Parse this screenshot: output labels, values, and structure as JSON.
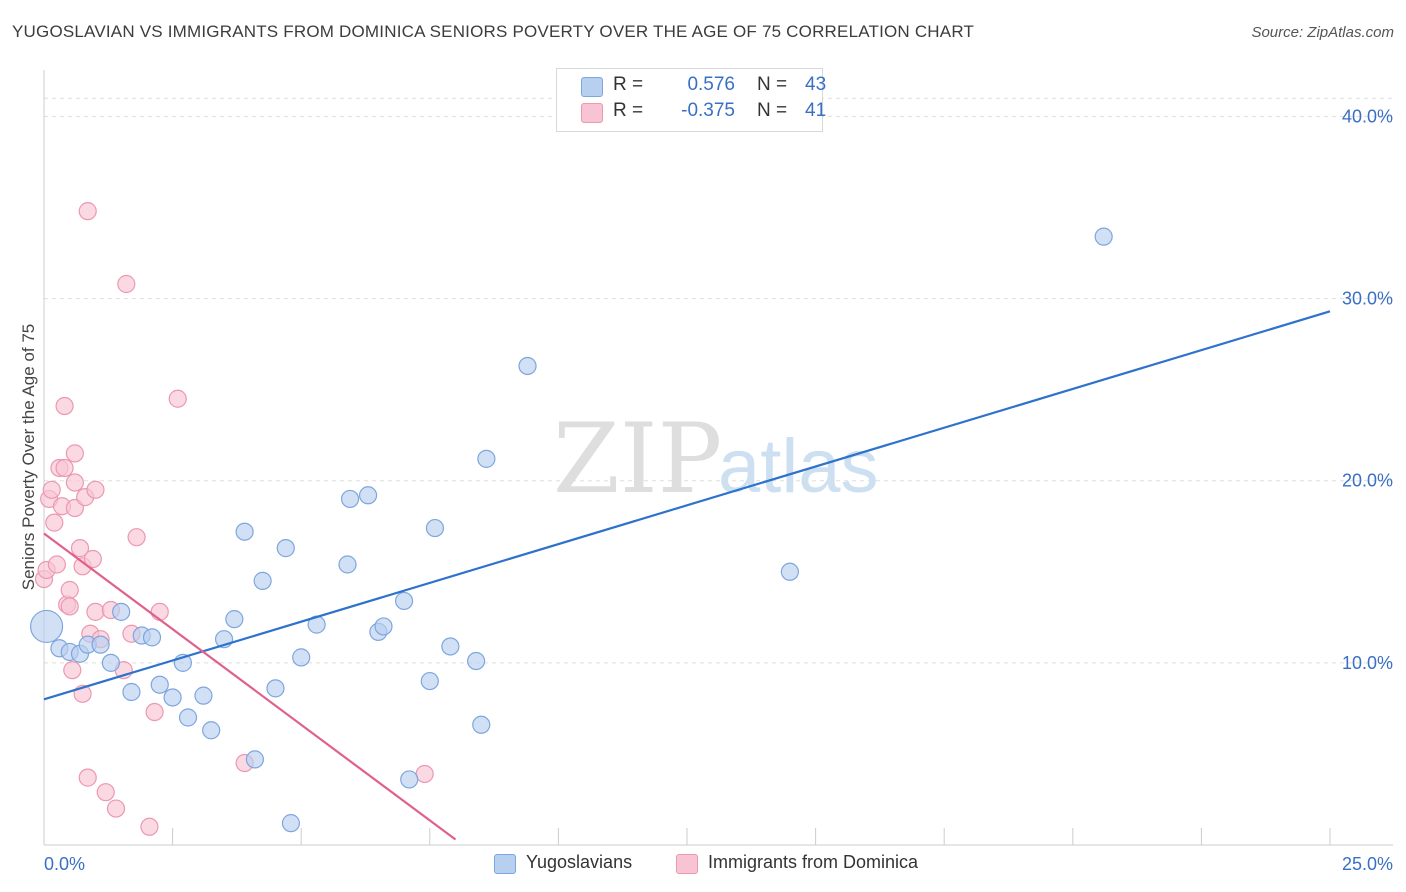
{
  "title": "YUGOSLAVIAN VS IMMIGRANTS FROM DOMINICA SENIORS POVERTY OVER THE AGE OF 75 CORRELATION CHART",
  "source": "Source: ZipAtlas.com",
  "watermark": {
    "bold": "ZIP",
    "light": "atlas"
  },
  "legend": {
    "rows": [
      {
        "r_label": "R =",
        "r_value": "0.576",
        "n_label": "N =",
        "n_value": "43"
      },
      {
        "r_label": "R =",
        "r_value": "-0.375",
        "n_label": "N =",
        "n_value": "41"
      }
    ]
  },
  "bottom_legend": {
    "series1": "Yugoslavians",
    "series2": "Immigrants from Dominica"
  },
  "colors": {
    "series1_fill": "#b8d0f0",
    "series1_stroke": "#7ea6de",
    "series1_line": "#2e72cc",
    "series2_fill": "#f8c4d4",
    "series2_stroke": "#ec98b2",
    "series2_line": "#e0608c",
    "tick_label": "#3a6fc4",
    "grid": "#dddddd"
  },
  "chart_data": {
    "type": "scatter",
    "title": "YUGOSLAVIAN VS IMMIGRANTS FROM DOMINICA SENIORS POVERTY OVER THE AGE OF 75 CORRELATION CHART",
    "xlabel": "",
    "ylabel": "Seniors Poverty Over the Age of 75",
    "xlim": [
      0,
      25
    ],
    "ylim": [
      0,
      42
    ],
    "x_tick_labels": [
      {
        "value": 0,
        "label": "0.0%"
      },
      {
        "value": 25,
        "label": "25.0%"
      }
    ],
    "y_tick_labels": [
      {
        "value": 10,
        "label": "10.0%"
      },
      {
        "value": 20,
        "label": "20.0%"
      },
      {
        "value": 30,
        "label": "30.0%"
      },
      {
        "value": 40,
        "label": "40.0%"
      }
    ],
    "x_minor_ticks": [
      2.5,
      5,
      7.5,
      10,
      12.5,
      15,
      17.5,
      20,
      22.5,
      25
    ],
    "series": [
      {
        "name": "Yugoslavians",
        "r": 0.576,
        "n": 43,
        "trend": {
          "x": [
            0,
            25
          ],
          "y": [
            8.0,
            29.3
          ]
        },
        "points": [
          [
            0.05,
            12.0,
            "big"
          ],
          [
            0.3,
            10.8
          ],
          [
            0.5,
            10.6
          ],
          [
            0.7,
            10.5
          ],
          [
            0.85,
            11.0
          ],
          [
            1.1,
            11.0
          ],
          [
            1.3,
            10.0
          ],
          [
            1.5,
            12.8
          ],
          [
            1.7,
            8.4
          ],
          [
            1.9,
            11.5
          ],
          [
            2.1,
            11.4
          ],
          [
            2.25,
            8.8
          ],
          [
            2.5,
            8.1
          ],
          [
            2.7,
            10.0
          ],
          [
            2.8,
            7.0
          ],
          [
            3.1,
            8.2
          ],
          [
            3.25,
            6.3
          ],
          [
            3.5,
            11.3
          ],
          [
            3.7,
            12.4
          ],
          [
            3.9,
            17.2
          ],
          [
            4.1,
            4.7
          ],
          [
            4.25,
            14.5
          ],
          [
            4.5,
            8.6
          ],
          [
            4.7,
            16.3
          ],
          [
            4.8,
            1.2
          ],
          [
            5.0,
            10.3
          ],
          [
            5.3,
            12.1
          ],
          [
            5.9,
            15.4
          ],
          [
            5.95,
            19.0
          ],
          [
            6.3,
            19.2
          ],
          [
            6.5,
            11.7
          ],
          [
            6.6,
            12.0
          ],
          [
            7.0,
            13.4
          ],
          [
            7.1,
            3.6
          ],
          [
            7.5,
            9.0
          ],
          [
            7.6,
            17.4
          ],
          [
            7.9,
            10.9
          ],
          [
            8.4,
            10.1
          ],
          [
            8.5,
            6.6
          ],
          [
            8.6,
            21.2
          ],
          [
            9.4,
            26.3
          ],
          [
            14.5,
            15.0
          ],
          [
            20.6,
            33.4
          ]
        ]
      },
      {
        "name": "Immigrants from Dominica",
        "r": -0.375,
        "n": 41,
        "trend": {
          "x": [
            0,
            8.0
          ],
          "y": [
            17.1,
            0.3
          ]
        },
        "points": [
          [
            0.0,
            14.6
          ],
          [
            0.05,
            15.1
          ],
          [
            0.1,
            19.0
          ],
          [
            0.15,
            19.5
          ],
          [
            0.2,
            17.7
          ],
          [
            0.25,
            15.4
          ],
          [
            0.3,
            20.7
          ],
          [
            0.35,
            18.6
          ],
          [
            0.4,
            20.7
          ],
          [
            0.4,
            24.1
          ],
          [
            0.45,
            13.2
          ],
          [
            0.5,
            14.0
          ],
          [
            0.5,
            13.1
          ],
          [
            0.55,
            9.6
          ],
          [
            0.6,
            21.5
          ],
          [
            0.6,
            19.9
          ],
          [
            0.6,
            18.5
          ],
          [
            0.7,
            16.3
          ],
          [
            0.75,
            15.3
          ],
          [
            0.75,
            8.3
          ],
          [
            0.8,
            19.1
          ],
          [
            0.85,
            34.8
          ],
          [
            0.85,
            3.7
          ],
          [
            0.9,
            11.6
          ],
          [
            0.95,
            15.7
          ],
          [
            1.0,
            19.5
          ],
          [
            1.0,
            12.8
          ],
          [
            1.1,
            11.3
          ],
          [
            1.2,
            2.9
          ],
          [
            1.3,
            12.9
          ],
          [
            1.4,
            2.0
          ],
          [
            1.55,
            9.6
          ],
          [
            1.6,
            30.8
          ],
          [
            1.7,
            11.6
          ],
          [
            1.8,
            16.9
          ],
          [
            2.05,
            1.0
          ],
          [
            2.15,
            7.3
          ],
          [
            2.25,
            12.8
          ],
          [
            2.6,
            24.5
          ],
          [
            3.9,
            4.5
          ],
          [
            7.4,
            3.9
          ]
        ]
      }
    ]
  }
}
